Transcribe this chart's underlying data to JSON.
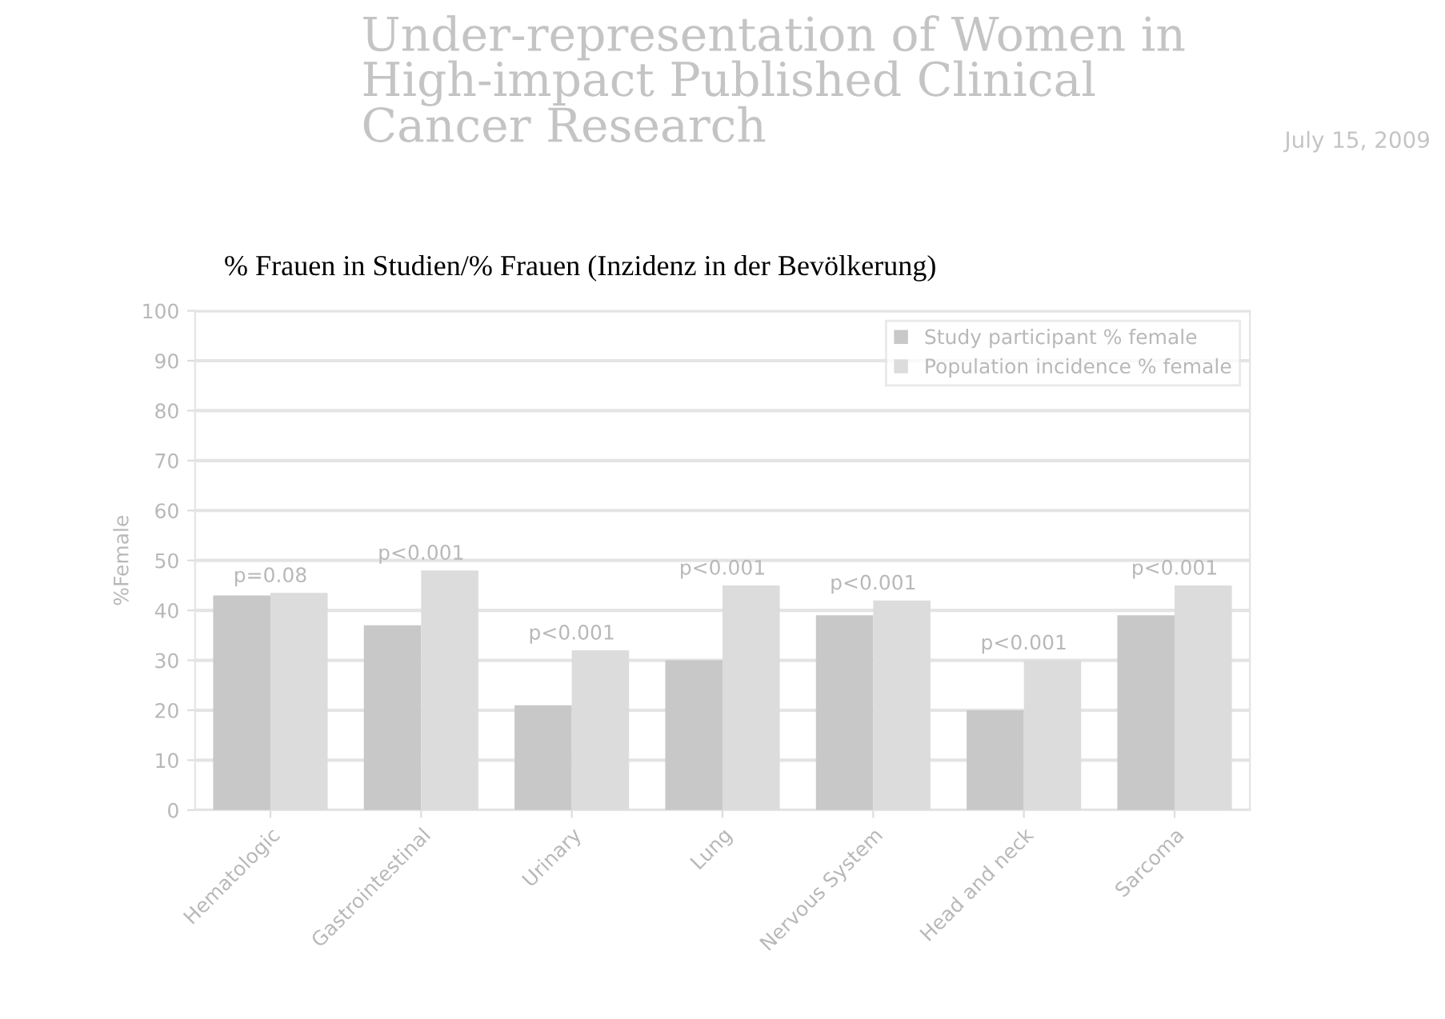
{
  "chart_data": {
    "type": "bar",
    "title": "Under-representation of Women in\nHigh-impact Published Clinical\nCancer Research",
    "subtitle": "% Frauen in Studien/% Frauen (Inzidenz in der Bevölkerung)",
    "ylabel": "%Female",
    "categories": [
      "Hematologic",
      "Gastrointestinal",
      "Urinary",
      "Lung",
      "Nervous System",
      "Head and neck",
      "Sarcoma"
    ],
    "series": [
      {
        "name": "Study participant % female",
        "color": "#c8c8c8",
        "values": [
          43,
          37,
          21,
          30,
          39,
          20,
          39
        ]
      },
      {
        "name": "Population incidence % female",
        "color": "#dcdcdc",
        "values": [
          43.5,
          48,
          32,
          45,
          42,
          30,
          45
        ]
      }
    ],
    "ylim": [
      0,
      100
    ],
    "yticks": [
      0,
      10,
      20,
      30,
      40,
      50,
      60,
      70,
      80,
      90,
      100
    ],
    "grid": "y",
    "legend": "top right",
    "annotations": [
      {
        "text": "p=0.08",
        "x": "Hematologic",
        "y": 43.5
      },
      {
        "text": "p<0.001",
        "x": "Gastrointestinal",
        "y": 48
      },
      {
        "text": "p<0.001",
        "x": "Urinary",
        "y": 32
      },
      {
        "text": "p<0.001",
        "x": "Lung",
        "y": 45
      },
      {
        "text": "p<0.001",
        "x": "Nervous System",
        "y": 42
      },
      {
        "text": "p<0.001",
        "x": "Head and neck",
        "y": 30
      },
      {
        "text": "p<0.001",
        "x": "Sarcoma",
        "y": 45
      },
      "July 15, 2009"
    ]
  }
}
